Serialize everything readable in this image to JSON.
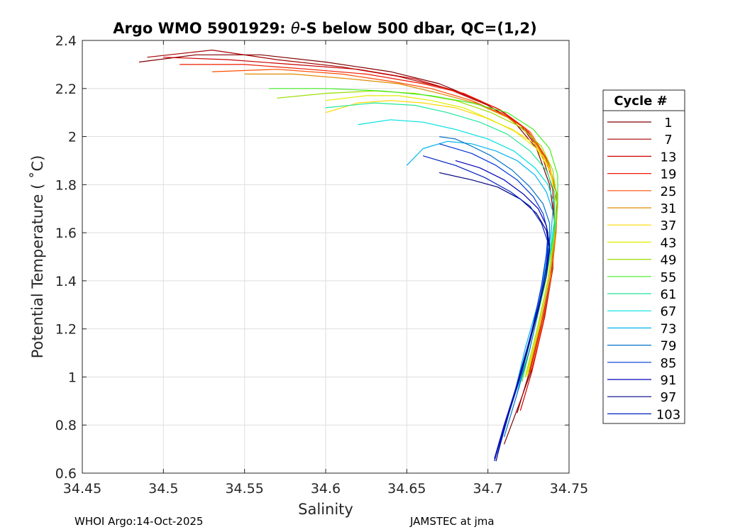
{
  "chart_data": {
    "type": "line",
    "title_prefix": "Argo WMO 5901929: ",
    "title_theta": "θ",
    "title_suffix": "-S below 500 dbar,  QC=(1,2)",
    "xlabel": "Salinity",
    "ylabel": "Potential Temperature ( ˚C)",
    "xlim": [
      34.45,
      34.75
    ],
    "ylim": [
      0.6,
      2.4
    ],
    "grid": true,
    "x_ticks": [
      34.45,
      34.5,
      34.55,
      34.6,
      34.65,
      34.7,
      34.75
    ],
    "x_tick_labels": [
      "34.45",
      "34.5",
      "34.55",
      "34.6",
      "34.65",
      "34.7",
      "34.75"
    ],
    "y_ticks": [
      0.6,
      0.8,
      1.0,
      1.2,
      1.4,
      1.6,
      1.8,
      2.0,
      2.2,
      2.4
    ],
    "y_tick_labels": [
      "0.6",
      "0.8",
      "1",
      "1.2",
      "1.4",
      "1.6",
      "1.8",
      "2",
      "2.2",
      "2.4"
    ],
    "legend": {
      "title": "Cycle #",
      "placement": "right-outside",
      "entries": [
        {
          "label": "1",
          "color": "#800000"
        },
        {
          "label": "7",
          "color": "#a50000"
        },
        {
          "label": "13",
          "color": "#cc0000"
        },
        {
          "label": "19",
          "color": "#ee1a00"
        },
        {
          "label": "25",
          "color": "#ff4d00"
        },
        {
          "label": "31",
          "color": "#e08a00"
        },
        {
          "label": "37",
          "color": "#ffd700"
        },
        {
          "label": "43",
          "color": "#e3ee00"
        },
        {
          "label": "49",
          "color": "#9ade00"
        },
        {
          "label": "55",
          "color": "#44ee22"
        },
        {
          "label": "61",
          "color": "#22e89a"
        },
        {
          "label": "67",
          "color": "#00e1e1"
        },
        {
          "label": "73",
          "color": "#00b4ee"
        },
        {
          "label": "79",
          "color": "#0072c6"
        },
        {
          "label": "85",
          "color": "#0036d8"
        },
        {
          "label": "91",
          "color": "#0000b8"
        },
        {
          "label": "97",
          "color": "#000080"
        },
        {
          "label": "103",
          "color": "#0020c0"
        }
      ]
    },
    "series": [
      {
        "name": "1",
        "x": [
          34.485,
          34.52,
          34.56,
          34.6,
          34.64,
          34.67,
          34.695,
          34.715,
          34.73,
          34.738,
          34.741,
          34.74,
          34.735,
          34.728,
          34.72,
          34.71
        ],
        "y": [
          2.31,
          2.34,
          2.34,
          2.31,
          2.27,
          2.22,
          2.15,
          2.07,
          1.95,
          1.8,
          1.65,
          1.45,
          1.25,
          1.05,
          0.9,
          0.72
        ]
      },
      {
        "name": "7",
        "x": [
          34.49,
          34.53,
          34.57,
          34.61,
          34.645,
          34.675,
          34.7,
          34.72,
          34.733,
          34.74,
          34.741,
          34.739,
          34.733,
          34.726,
          34.718
        ],
        "y": [
          2.33,
          2.36,
          2.32,
          2.29,
          2.25,
          2.2,
          2.13,
          2.05,
          1.93,
          1.78,
          1.63,
          1.42,
          1.22,
          1.03,
          0.85
        ]
      },
      {
        "name": "13",
        "x": [
          34.5,
          34.54,
          34.58,
          34.62,
          34.655,
          34.68,
          34.705,
          34.722,
          34.735,
          34.742,
          34.742,
          34.739,
          34.734,
          34.727,
          34.72
        ],
        "y": [
          2.33,
          2.32,
          2.3,
          2.28,
          2.24,
          2.19,
          2.12,
          2.04,
          1.92,
          1.77,
          1.62,
          1.42,
          1.22,
          1.02,
          0.86
        ]
      },
      {
        "name": "19",
        "x": [
          34.51,
          34.55,
          34.59,
          34.625,
          34.66,
          34.685,
          34.708,
          34.724,
          34.736,
          34.742,
          34.742,
          34.739,
          34.734,
          34.727
        ],
        "y": [
          2.3,
          2.3,
          2.28,
          2.26,
          2.22,
          2.18,
          2.11,
          2.03,
          1.91,
          1.77,
          1.62,
          1.42,
          1.22,
          1.03
        ]
      },
      {
        "name": "25",
        "x": [
          34.53,
          34.57,
          34.61,
          34.64,
          34.665,
          34.69,
          34.71,
          34.726,
          34.737,
          34.743,
          34.742,
          34.739,
          34.733,
          34.726
        ],
        "y": [
          2.27,
          2.28,
          2.26,
          2.23,
          2.2,
          2.15,
          2.09,
          2.02,
          1.9,
          1.75,
          1.6,
          1.41,
          1.21,
          1.02
        ]
      },
      {
        "name": "31",
        "x": [
          34.55,
          34.58,
          34.615,
          34.645,
          34.67,
          34.692,
          34.712,
          34.727,
          34.737,
          34.743,
          34.742,
          34.738,
          34.732,
          34.725
        ],
        "y": [
          2.26,
          2.26,
          2.24,
          2.22,
          2.18,
          2.14,
          2.08,
          2.0,
          1.89,
          1.75,
          1.6,
          1.41,
          1.21,
          1.02
        ]
      },
      {
        "name": "37",
        "x": [
          34.6,
          34.62,
          34.64,
          34.66,
          34.68,
          34.698,
          34.715,
          34.729,
          34.738,
          34.742,
          34.741,
          34.737,
          34.731,
          34.724
        ],
        "y": [
          2.1,
          2.14,
          2.15,
          2.14,
          2.12,
          2.08,
          2.03,
          1.97,
          1.87,
          1.73,
          1.59,
          1.41,
          1.2,
          1.01
        ]
      },
      {
        "name": "43",
        "x": [
          34.6,
          34.625,
          34.645,
          34.665,
          34.685,
          34.702,
          34.717,
          34.73,
          34.739,
          34.742,
          34.741,
          34.737,
          34.731,
          34.724
        ],
        "y": [
          2.15,
          2.17,
          2.17,
          2.15,
          2.12,
          2.07,
          2.02,
          1.95,
          1.85,
          1.72,
          1.58,
          1.4,
          1.2,
          1.0
        ]
      },
      {
        "name": "49",
        "x": [
          34.57,
          34.6,
          34.63,
          34.655,
          34.68,
          34.702,
          34.72,
          34.733,
          34.74,
          34.743,
          34.741,
          34.737,
          34.73,
          34.723
        ],
        "y": [
          2.16,
          2.18,
          2.19,
          2.18,
          2.15,
          2.1,
          2.04,
          1.96,
          1.86,
          1.72,
          1.58,
          1.4,
          1.19,
          1.0
        ]
      },
      {
        "name": "55",
        "x": [
          34.565,
          34.6,
          34.635,
          34.665,
          34.69,
          34.712,
          34.728,
          34.738,
          34.743,
          34.743,
          34.74,
          34.735,
          34.728,
          34.721
        ],
        "y": [
          2.2,
          2.2,
          2.19,
          2.17,
          2.14,
          2.1,
          2.03,
          1.95,
          1.84,
          1.71,
          1.56,
          1.38,
          1.18,
          0.98
        ]
      },
      {
        "name": "61",
        "x": [
          34.6,
          34.63,
          34.655,
          34.675,
          34.695,
          34.712,
          34.726,
          34.736,
          34.741,
          34.741,
          34.738,
          34.733,
          34.726,
          34.719
        ],
        "y": [
          2.12,
          2.14,
          2.13,
          2.1,
          2.06,
          2.01,
          1.94,
          1.86,
          1.77,
          1.65,
          1.52,
          1.35,
          1.15,
          0.95
        ]
      },
      {
        "name": "67",
        "x": [
          34.62,
          34.64,
          34.66,
          34.68,
          34.7,
          34.716,
          34.729,
          34.737,
          34.741,
          34.741,
          34.738,
          34.733,
          34.725,
          34.718
        ],
        "y": [
          2.05,
          2.07,
          2.06,
          2.03,
          1.99,
          1.94,
          1.87,
          1.8,
          1.72,
          1.62,
          1.5,
          1.33,
          1.14,
          0.93
        ]
      },
      {
        "name": "73",
        "x": [
          34.65,
          34.66,
          34.675,
          34.69,
          34.705,
          34.718,
          34.729,
          34.736,
          34.74,
          34.739,
          34.736,
          34.731,
          34.723,
          34.716
        ],
        "y": [
          1.88,
          1.95,
          1.98,
          1.97,
          1.94,
          1.9,
          1.84,
          1.77,
          1.69,
          1.6,
          1.48,
          1.31,
          1.12,
          0.92
        ]
      },
      {
        "name": "79",
        "x": [
          34.67,
          34.68,
          34.69,
          34.702,
          34.715,
          34.726,
          34.734,
          34.738,
          34.738,
          34.736,
          34.732,
          34.726,
          34.718,
          34.71
        ],
        "y": [
          2.0,
          1.99,
          1.96,
          1.92,
          1.86,
          1.79,
          1.72,
          1.64,
          1.55,
          1.45,
          1.3,
          1.12,
          0.93,
          0.75
        ]
      },
      {
        "name": "85",
        "x": [
          34.67,
          34.69,
          34.705,
          34.718,
          34.728,
          34.734,
          34.737,
          34.736,
          34.733,
          34.728,
          34.721,
          34.713,
          34.706
        ],
        "y": [
          1.97,
          1.93,
          1.88,
          1.82,
          1.75,
          1.68,
          1.6,
          1.51,
          1.38,
          1.22,
          1.02,
          0.85,
          0.68
        ]
      },
      {
        "name": "91",
        "x": [
          34.68,
          34.695,
          34.71,
          34.722,
          34.731,
          34.736,
          34.738,
          34.736,
          34.732,
          34.726,
          34.718,
          34.71,
          34.704
        ],
        "y": [
          1.9,
          1.87,
          1.82,
          1.76,
          1.7,
          1.63,
          1.55,
          1.45,
          1.32,
          1.15,
          0.97,
          0.8,
          0.66
        ]
      },
      {
        "name": "97",
        "x": [
          34.67,
          34.69,
          34.706,
          34.72,
          34.73,
          34.736,
          34.738,
          34.736,
          34.731,
          34.724,
          34.716,
          34.709,
          34.705
        ],
        "y": [
          1.85,
          1.82,
          1.79,
          1.74,
          1.68,
          1.61,
          1.53,
          1.42,
          1.28,
          1.1,
          0.92,
          0.76,
          0.65
        ]
      },
      {
        "name": "103",
        "x": [
          34.66,
          34.68,
          34.698,
          34.714,
          34.726,
          34.733,
          34.737,
          34.736,
          34.732,
          34.725,
          34.717,
          34.71,
          34.704
        ],
        "y": [
          1.92,
          1.88,
          1.83,
          1.77,
          1.71,
          1.64,
          1.56,
          1.46,
          1.32,
          1.14,
          0.95,
          0.79,
          0.65
        ]
      }
    ]
  },
  "footer": {
    "left": "WHOI Argo:14-Oct-2025",
    "right": "JAMSTEC at jma"
  }
}
